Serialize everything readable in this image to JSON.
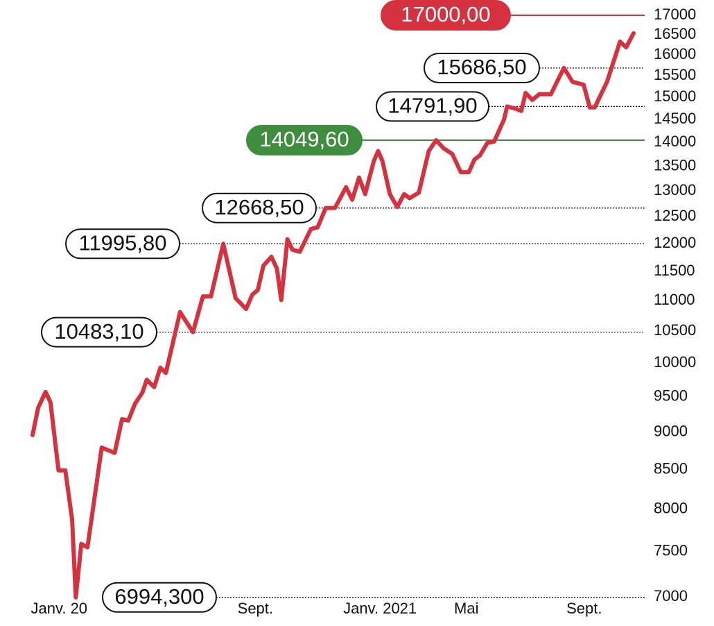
{
  "chart_data": {
    "type": "line",
    "color": "#d6313f",
    "log_scale": true,
    "x": [
      0,
      0.9,
      2.1,
      2.9,
      4.2,
      5.3,
      6.4,
      7.0,
      7.9,
      8.9,
      11.2,
      13.3,
      14.5,
      15.5,
      16.6,
      17.8,
      18.5,
      19.7,
      20.7,
      21.6,
      23.9,
      26.0,
      27.6,
      28.9,
      30.9,
      32.9,
      34.6,
      35.6,
      36.5,
      37.4,
      38.7,
      39.6,
      40.3,
      41.3,
      42.1,
      43.3,
      45.1,
      46.2,
      47.5,
      49.0,
      50.8,
      51.8,
      52.9,
      53.9,
      55.3,
      56.0,
      56.7,
      57.9,
      59.1,
      60.2,
      61.1,
      62.6,
      64.2,
      65.4,
      66.6,
      68.0,
      69.4,
      70.7,
      71.6,
      72.5,
      73.7,
      74.8,
      76.4,
      76.9,
      78.3,
      79.2,
      79.9,
      81.0,
      82.1,
      84.0,
      86.1,
      87.5,
      89.3,
      90.3,
      91.1,
      93.1,
      95.2,
      96.2,
      97.4
    ],
    "values": [
      8960,
      9340,
      9570,
      9420,
      8490,
      8490,
      7880,
      6994.3,
      7590,
      7550,
      8790,
      8720,
      9180,
      9160,
      9400,
      9560,
      9750,
      9640,
      9930,
      9850,
      10810,
      10483.1,
      11070,
      11070,
      11995.8,
      11040,
      10860,
      11100,
      11180,
      11600,
      11760,
      11550,
      11010,
      12080,
      11890,
      11850,
      12270,
      12300,
      12668.5,
      12670,
      13080,
      12830,
      13270,
      12940,
      13610,
      13820,
      13610,
      12940,
      12690,
      12940,
      12860,
      12970,
      13820,
      14049.6,
      13880,
      13760,
      13380,
      13380,
      13640,
      13730,
      13990,
      14020,
      14500,
      14791.9,
      14740,
      14690,
      15100,
      14940,
      15070,
      15070,
      15686.5,
      15360,
      15290,
      14770,
      14770,
      15360,
      16330,
      16190,
      16540
    ],
    "xlim": [
      0,
      97.4
    ],
    "xticks": [
      {
        "value": 4.3,
        "label": "Janv. 20"
      },
      {
        "value": 36.1,
        "label": "Sept."
      },
      {
        "value": 56.3,
        "label": "Janv. 2021"
      },
      {
        "value": 70.3,
        "label": "Mai"
      },
      {
        "value": 89.4,
        "label": "Sept."
      }
    ],
    "ylim": [
      7000,
      17000
    ],
    "yticks": [
      7000,
      7500,
      8000,
      8500,
      9000,
      9500,
      10000,
      10500,
      11000,
      11500,
      12000,
      12500,
      13000,
      13500,
      14000,
      14500,
      15000,
      15500,
      16000,
      16500,
      17000
    ],
    "reference_lines": [
      {
        "value": 17000,
        "label": "17000,00",
        "color": "#d6313f",
        "filled": true
      },
      {
        "value": 15686.5,
        "label": "15686,50",
        "color": "#000000",
        "filled": false
      },
      {
        "value": 14791.9,
        "label": "14791,90",
        "color": "#000000",
        "filled": false
      },
      {
        "value": 14049.6,
        "label": "14049,60",
        "color": "#3f8d3f",
        "filled": true
      },
      {
        "value": 12668.5,
        "label": "12668,50",
        "color": "#000000",
        "filled": false
      },
      {
        "value": 11995.8,
        "label": "11995,80",
        "color": "#000000",
        "filled": false
      },
      {
        "value": 10483.1,
        "label": "10483,10",
        "color": "#000000",
        "filled": false
      },
      {
        "value": 6994.3,
        "label": "6994,300",
        "color": "#000000",
        "filled": false
      }
    ]
  }
}
